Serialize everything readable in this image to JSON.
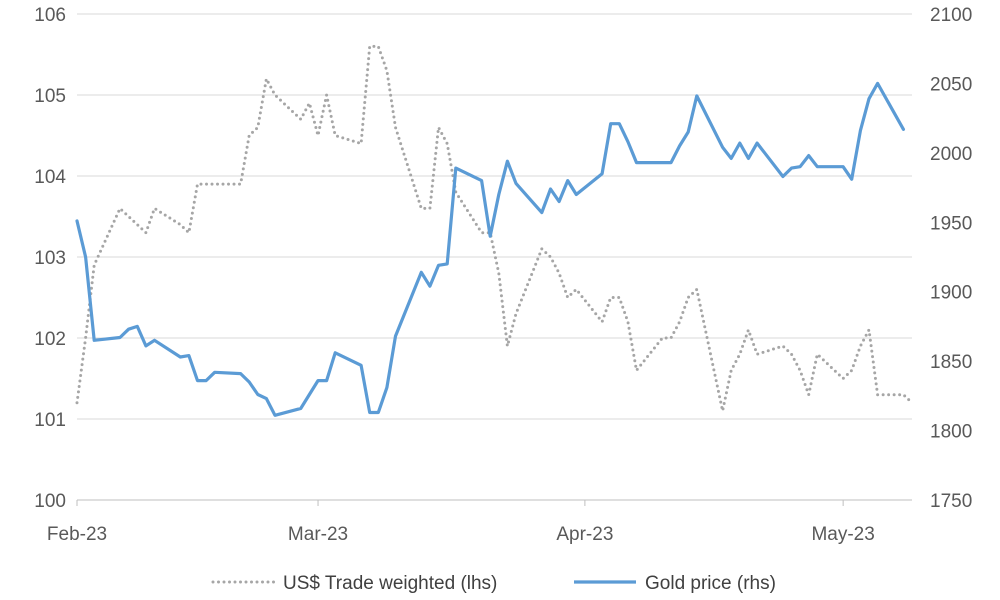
{
  "chart_data": {
    "type": "line",
    "x_ticks": [
      "Feb-23",
      "Mar-23",
      "Apr-23",
      "May-23"
    ],
    "y_left": {
      "min": 100,
      "max": 106,
      "step": 1,
      "tick_labels": [
        "100",
        "101",
        "102",
        "103",
        "104",
        "105",
        "106"
      ]
    },
    "y_right": {
      "min": 1750,
      "max": 2100,
      "step": 50,
      "tick_labels": [
        "1750",
        "1800",
        "1850",
        "1900",
        "1950",
        "2000",
        "2050",
        "2100"
      ]
    },
    "grid": "horizontal",
    "legend_position": "bottom",
    "series": [
      {
        "name": "US$ Trade weighted (lhs)",
        "axis": "left",
        "color": "#a6a6a6",
        "style": "dotted",
        "points": [
          [
            "2023-02-01",
            101.2
          ],
          [
            "2023-02-02",
            102.0
          ],
          [
            "2023-02-03",
            102.9
          ],
          [
            "2023-02-06",
            103.6
          ],
          [
            "2023-02-07",
            103.5
          ],
          [
            "2023-02-08",
            103.4
          ],
          [
            "2023-02-09",
            103.3
          ],
          [
            "2023-02-10",
            103.6
          ],
          [
            "2023-02-13",
            103.4
          ],
          [
            "2023-02-14",
            103.3
          ],
          [
            "2023-02-15",
            103.9
          ],
          [
            "2023-02-16",
            103.9
          ],
          [
            "2023-02-17",
            103.9
          ],
          [
            "2023-02-20",
            103.9
          ],
          [
            "2023-02-21",
            104.5
          ],
          [
            "2023-02-22",
            104.6
          ],
          [
            "2023-02-23",
            105.2
          ],
          [
            "2023-02-24",
            105.0
          ],
          [
            "2023-02-27",
            104.7
          ],
          [
            "2023-02-28",
            104.9
          ],
          [
            "2023-03-01",
            104.5
          ],
          [
            "2023-03-02",
            105.0
          ],
          [
            "2023-03-03",
            104.5
          ],
          [
            "2023-03-06",
            104.4
          ],
          [
            "2023-03-07",
            105.6
          ],
          [
            "2023-03-08",
            105.6
          ],
          [
            "2023-03-09",
            105.3
          ],
          [
            "2023-03-10",
            104.6
          ],
          [
            "2023-03-13",
            103.6
          ],
          [
            "2023-03-14",
            103.6
          ],
          [
            "2023-03-15",
            104.6
          ],
          [
            "2023-03-16",
            104.4
          ],
          [
            "2023-03-17",
            103.8
          ],
          [
            "2023-03-20",
            103.3
          ],
          [
            "2023-03-21",
            103.3
          ],
          [
            "2023-03-22",
            102.8
          ],
          [
            "2023-03-23",
            101.9
          ],
          [
            "2023-03-24",
            102.3
          ],
          [
            "2023-03-27",
            103.1
          ],
          [
            "2023-03-28",
            103.0
          ],
          [
            "2023-03-29",
            102.8
          ],
          [
            "2023-03-30",
            102.5
          ],
          [
            "2023-03-31",
            102.6
          ],
          [
            "2023-04-03",
            102.2
          ],
          [
            "2023-04-04",
            102.5
          ],
          [
            "2023-04-05",
            102.5
          ],
          [
            "2023-04-06",
            102.2
          ],
          [
            "2023-04-07",
            101.6
          ],
          [
            "2023-04-10",
            102.0
          ],
          [
            "2023-04-11",
            102.0
          ],
          [
            "2023-04-12",
            102.2
          ],
          [
            "2023-04-13",
            102.5
          ],
          [
            "2023-04-14",
            102.6
          ],
          [
            "2023-04-17",
            101.1
          ],
          [
            "2023-04-18",
            101.6
          ],
          [
            "2023-04-19",
            101.8
          ],
          [
            "2023-04-20",
            102.1
          ],
          [
            "2023-04-21",
            101.8
          ],
          [
            "2023-04-24",
            101.9
          ],
          [
            "2023-04-25",
            101.8
          ],
          [
            "2023-04-26",
            101.6
          ],
          [
            "2023-04-27",
            101.3
          ],
          [
            "2023-04-28",
            101.8
          ],
          [
            "2023-05-01",
            101.5
          ],
          [
            "2023-05-02",
            101.6
          ],
          [
            "2023-05-03",
            101.9
          ],
          [
            "2023-05-04",
            102.1
          ],
          [
            "2023-05-05",
            101.3
          ],
          [
            "2023-05-08",
            101.3
          ],
          [
            "2023-05-09",
            101.2
          ]
        ]
      },
      {
        "name": "Gold price (rhs)",
        "axis": "right",
        "color": "#5b9bd5",
        "style": "solid",
        "points": [
          [
            "2023-02-01",
            1951
          ],
          [
            "2023-02-02",
            1925
          ],
          [
            "2023-02-03",
            1865
          ],
          [
            "2023-02-06",
            1867
          ],
          [
            "2023-02-07",
            1873
          ],
          [
            "2023-02-08",
            1875
          ],
          [
            "2023-02-09",
            1861
          ],
          [
            "2023-02-10",
            1865
          ],
          [
            "2023-02-13",
            1853
          ],
          [
            "2023-02-14",
            1854
          ],
          [
            "2023-02-15",
            1836
          ],
          [
            "2023-02-16",
            1836
          ],
          [
            "2023-02-17",
            1842
          ],
          [
            "2023-02-20",
            1841
          ],
          [
            "2023-02-21",
            1835
          ],
          [
            "2023-02-22",
            1826
          ],
          [
            "2023-02-23",
            1823
          ],
          [
            "2023-02-24",
            1811
          ],
          [
            "2023-02-27",
            1816
          ],
          [
            "2023-02-28",
            1826
          ],
          [
            "2023-03-01",
            1836
          ],
          [
            "2023-03-02",
            1836
          ],
          [
            "2023-03-03",
            1856
          ],
          [
            "2023-03-06",
            1847
          ],
          [
            "2023-03-07",
            1813
          ],
          [
            "2023-03-08",
            1813
          ],
          [
            "2023-03-09",
            1831
          ],
          [
            "2023-03-10",
            1868
          ],
          [
            "2023-03-13",
            1914
          ],
          [
            "2023-03-14",
            1904
          ],
          [
            "2023-03-15",
            1919
          ],
          [
            "2023-03-16",
            1920
          ],
          [
            "2023-03-17",
            1989
          ],
          [
            "2023-03-20",
            1980
          ],
          [
            "2023-03-21",
            1940
          ],
          [
            "2023-03-22",
            1970
          ],
          [
            "2023-03-23",
            1994
          ],
          [
            "2023-03-24",
            1978
          ],
          [
            "2023-03-27",
            1957
          ],
          [
            "2023-03-28",
            1974
          ],
          [
            "2023-03-29",
            1965
          ],
          [
            "2023-03-30",
            1980
          ],
          [
            "2023-03-31",
            1970
          ],
          [
            "2023-04-03",
            1985
          ],
          [
            "2023-04-04",
            2021
          ],
          [
            "2023-04-05",
            2021
          ],
          [
            "2023-04-06",
            2008
          ],
          [
            "2023-04-07",
            1993
          ],
          [
            "2023-04-10",
            1993
          ],
          [
            "2023-04-11",
            1993
          ],
          [
            "2023-04-12",
            2005
          ],
          [
            "2023-04-13",
            2015
          ],
          [
            "2023-04-14",
            2041
          ],
          [
            "2023-04-17",
            2004
          ],
          [
            "2023-04-18",
            1996
          ],
          [
            "2023-04-19",
            2007
          ],
          [
            "2023-04-20",
            1996
          ],
          [
            "2023-04-21",
            2007
          ],
          [
            "2023-04-24",
            1983
          ],
          [
            "2023-04-25",
            1989
          ],
          [
            "2023-04-26",
            1990
          ],
          [
            "2023-04-27",
            1998
          ],
          [
            "2023-04-28",
            1990
          ],
          [
            "2023-05-01",
            1990
          ],
          [
            "2023-05-02",
            1981
          ],
          [
            "2023-05-03",
            2016
          ],
          [
            "2023-05-04",
            2039
          ],
          [
            "2023-05-05",
            2050
          ],
          [
            "2023-05-08",
            2017
          ]
        ]
      }
    ]
  }
}
